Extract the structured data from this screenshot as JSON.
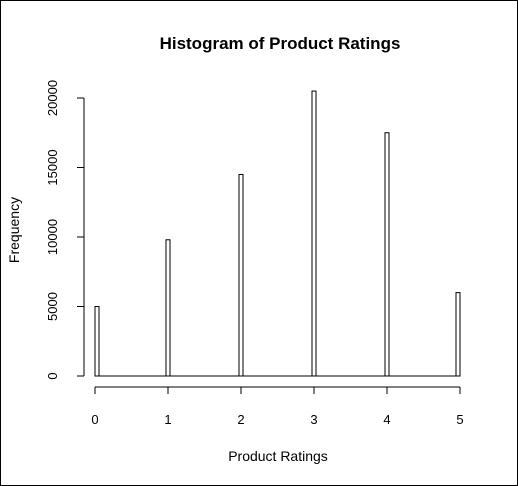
{
  "chart_data": {
    "type": "bar",
    "title": "Histogram of Product Ratings",
    "xlabel": "Product Ratings",
    "ylabel": "Frequency",
    "categories": [
      "0",
      "1",
      "2",
      "3",
      "4",
      "5"
    ],
    "x": [
      0,
      1,
      2,
      3,
      4,
      5
    ],
    "values": [
      5000,
      9800,
      14500,
      20500,
      17500,
      6000
    ],
    "xlim": [
      0,
      5
    ],
    "ylim": [
      0,
      20000
    ],
    "x_ticks": [
      0,
      1,
      2,
      3,
      4,
      5
    ],
    "y_ticks": [
      0,
      5000,
      10000,
      15000,
      20000
    ],
    "grid": false,
    "legend": "none",
    "colors": {
      "bar_fill": "#ffffff",
      "bar_stroke": "#000000",
      "axis": "#000000"
    }
  }
}
